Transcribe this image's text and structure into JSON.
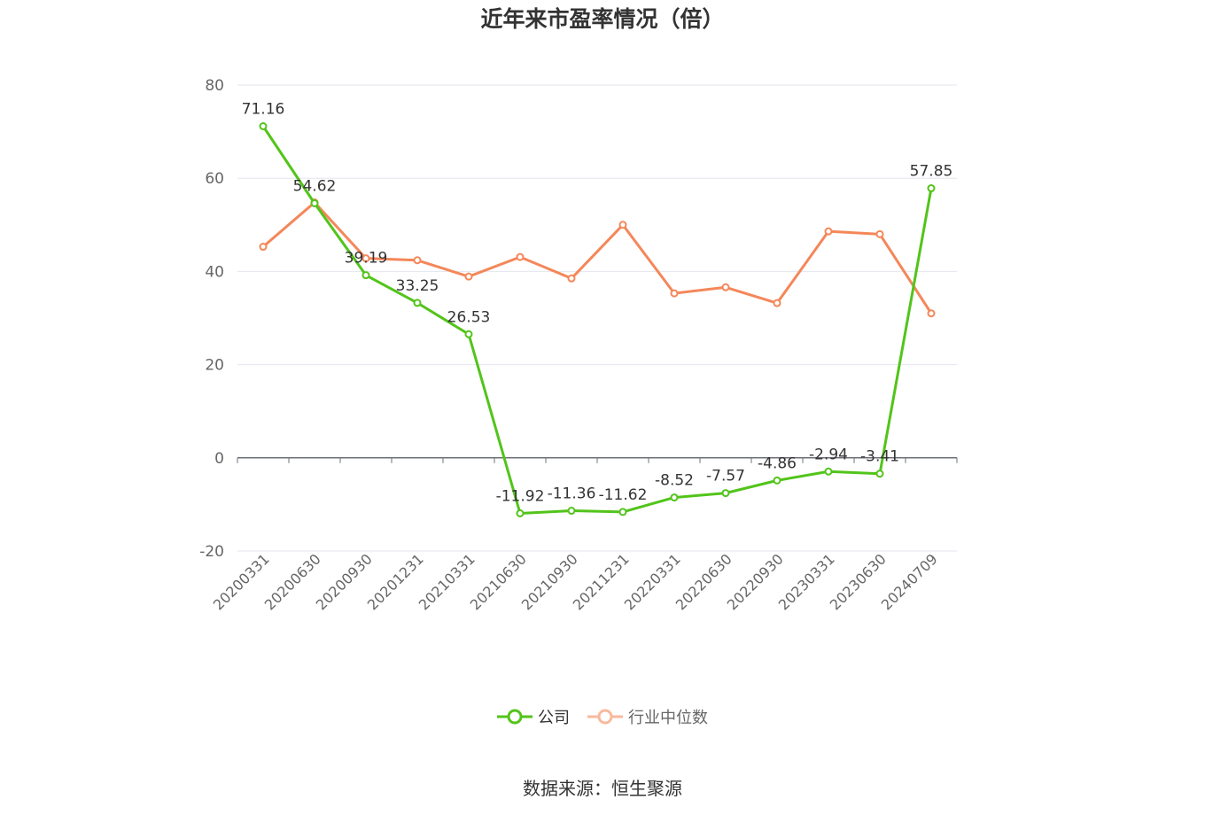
{
  "chart_data": {
    "type": "line",
    "title": "近年来市盈率情况（倍）",
    "categories": [
      "20200331",
      "20200630",
      "20200930",
      "20201231",
      "20210331",
      "20210630",
      "20210930",
      "20211231",
      "20220331",
      "20220630",
      "20220930",
      "20230331",
      "20230630",
      "20240709"
    ],
    "series": [
      {
        "name": "公司",
        "color": "#52c41a",
        "values": [
          71.16,
          54.62,
          39.19,
          33.25,
          26.53,
          -11.92,
          -11.36,
          -11.62,
          -8.52,
          -7.57,
          -4.86,
          -2.94,
          -3.41,
          57.85
        ],
        "labels": [
          "71.16",
          "54.62",
          "39.19",
          "33.25",
          "26.53",
          "-11.92",
          "-11.36",
          "-11.62",
          "-8.52",
          "-7.57",
          "-4.86",
          "-2.94",
          "-3.41",
          "57.85"
        ]
      },
      {
        "name": "行业中位数",
        "color": "#f4875a",
        "values": [
          45.3,
          54.8,
          42.8,
          42.4,
          38.9,
          43.1,
          38.5,
          50.0,
          35.3,
          36.6,
          33.2,
          48.6,
          48.0,
          31.0
        ]
      }
    ],
    "ylim": [
      -20,
      80
    ],
    "yticks": [
      "-20",
      "0",
      "20",
      "40",
      "60",
      "80"
    ],
    "xlabel": "",
    "ylabel": "",
    "grid": true,
    "legend_position": "bottom"
  },
  "source": "数据来源：恒生聚源"
}
